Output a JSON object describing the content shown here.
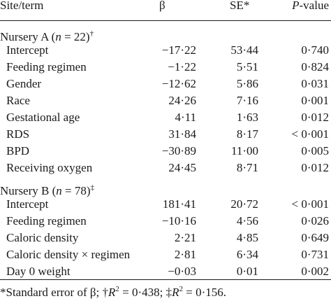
{
  "header": {
    "site_term": "Site/term",
    "beta": "β",
    "se": "SE*",
    "p_letter": "P",
    "p_rest": "-value"
  },
  "sections": [
    {
      "label_prefix": "Nursery A (",
      "n_symbol": "n",
      "label_n": " = 22)",
      "mark": "†",
      "rows": [
        {
          "term": "Intercept",
          "beta": "−17·22",
          "se": "53·44",
          "p": "0·740"
        },
        {
          "term": "Feeding regimen",
          "beta": "−1·22",
          "se": "5·51",
          "p": "0·824"
        },
        {
          "term": "Gender",
          "beta": "−12·62",
          "se": "5·86",
          "p": "0·031"
        },
        {
          "term": "Race",
          "beta": "24·26",
          "se": "7·16",
          "p": "0·001"
        },
        {
          "term": "Gestational age",
          "beta": "4·11",
          "se": "1·63",
          "p": "0·012"
        },
        {
          "term": "RDS",
          "beta": "31·84",
          "se": "8·17",
          "p": "< 0·001"
        },
        {
          "term": "BPD",
          "beta": "−30·89",
          "se": "11·00",
          "p": "0·005"
        },
        {
          "term": "Receiving oxygen",
          "beta": "24·45",
          "se": "8·71",
          "p": "0·012"
        }
      ]
    },
    {
      "label_prefix": "Nursery B (",
      "n_symbol": "n",
      "label_n": " = 78)",
      "mark": "‡",
      "rows": [
        {
          "term": "Intercept",
          "beta": "181·41",
          "se": "20·72",
          "p": "< 0·001"
        },
        {
          "term": "Feeding regimen",
          "beta": "−10·16",
          "se": "4·56",
          "p": "0·026"
        },
        {
          "term": "Caloric density",
          "beta": "2·21",
          "se": "4·85",
          "p": "0·649"
        },
        {
          "term": "Caloric density × regimen",
          "beta": "2·81",
          "se": "6·34",
          "p": "0·731"
        },
        {
          "term": "Day 0 weight",
          "beta": "−0·03",
          "se": "0·01",
          "p": "0·002"
        }
      ]
    }
  ],
  "footnote": {
    "se_note": "*Standard error of β; ",
    "dagger": "†",
    "r": "R",
    "sq": "2",
    "eq1": " = 0·438; ",
    "ddagger": "‡",
    "eq2": " = 0·156."
  }
}
